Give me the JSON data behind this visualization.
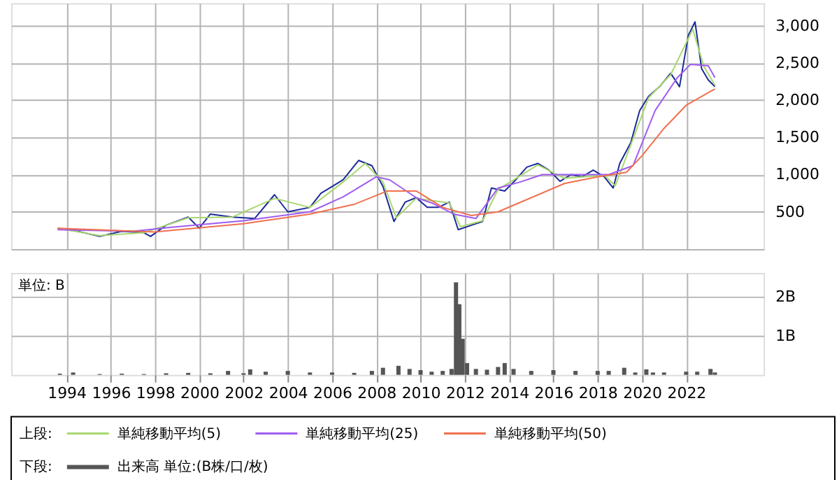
{
  "chart_data": [
    {
      "type": "line",
      "xlim": [
        1991.5,
        2025.5
      ],
      "xticks": [
        1994,
        1996,
        1998,
        2000,
        2002,
        2004,
        2006,
        2008,
        2010,
        2012,
        2014,
        2016,
        2018,
        2020,
        2022
      ],
      "ylim": [
        0,
        3300
      ],
      "yticks": [
        {
          "value": 0,
          "label": null
        },
        {
          "value": 500,
          "label": "500"
        },
        {
          "value": 1000,
          "label": "1,000"
        },
        {
          "value": 1500,
          "label": "1,500"
        },
        {
          "value": 2000,
          "label": "2,000"
        },
        {
          "value": 2500,
          "label": "2,500"
        },
        {
          "value": 3000,
          "label": "3,000"
        }
      ],
      "tick_labels": "y",
      "grid": true,
      "legend": "bottom",
      "annotations": [
        "上段:"
      ],
      "series": [
        {
          "color": "#1c2a9a",
          "x": [
            1993.6,
            1994.5,
            1995.5,
            1996.5,
            1997.5,
            1997.8,
            1998.5,
            1999.5,
            2000.0,
            2000.5,
            2001.5,
            2002.5,
            2003.4,
            2004.0,
            2005.0,
            2005.5,
            2006.0,
            2006.5,
            2007.2,
            2007.8,
            2008.3,
            2008.8,
            2009.3,
            2009.8,
            2010.3,
            2010.8,
            2011.3,
            2011.7,
            2012.3,
            2012.8,
            2013.2,
            2013.8,
            2014.3,
            2014.8,
            2015.3,
            2015.8,
            2016.3,
            2016.8,
            2017.3,
            2017.8,
            2018.3,
            2018.7,
            2019.0,
            2019.5,
            2019.9,
            2020.3,
            2020.8,
            2021.3,
            2021.7,
            2022.1,
            2022.4,
            2022.7,
            2023.0,
            2023.3
          ],
          "values": [
            280,
            240,
            170,
            240,
            220,
            170,
            320,
            430,
            280,
            470,
            430,
            410,
            730,
            500,
            560,
            750,
            840,
            930,
            1190,
            1120,
            840,
            370,
            630,
            690,
            560,
            560,
            630,
            260,
            320,
            370,
            820,
            780,
            930,
            1100,
            1150,
            1060,
            910,
            1000,
            970,
            1060,
            970,
            820,
            1150,
            1430,
            1860,
            2050,
            2180,
            2360,
            2180,
            2870,
            3050,
            2420,
            2270,
            2180
          ]
        },
        {
          "name": "単純移動平均(5)",
          "color": "#a8d86e",
          "x": [
            1993.6,
            1995.5,
            1997.5,
            1999.5,
            2001.5,
            2003.4,
            2005.0,
            2006.5,
            2007.5,
            2008.3,
            2008.9,
            2009.8,
            2011.3,
            2011.8,
            2012.8,
            2013.5,
            2015.3,
            2016.5,
            2018.3,
            2018.8,
            2019.5,
            2020.3,
            2021.3,
            2022.3,
            2022.8,
            2023.3
          ],
          "values": [
            280,
            180,
            220,
            420,
            430,
            680,
            560,
            900,
            1150,
            900,
            420,
            680,
            620,
            300,
            380,
            800,
            1130,
            950,
            990,
            850,
            1400,
            2030,
            2340,
            2950,
            2450,
            2200
          ]
        },
        {
          "name": "単純移動平均(25)",
          "color": "#a05cf0",
          "x": [
            1993.6,
            1997.0,
            1999.0,
            2002.0,
            2005.0,
            2006.5,
            2008.0,
            2008.6,
            2009.8,
            2010.5,
            2011.5,
            2012.5,
            2013.5,
            2014.5,
            2015.5,
            2017.0,
            2018.5,
            2019.6,
            2020.6,
            2021.6,
            2022.2,
            2023.0,
            2023.3
          ],
          "values": [
            260,
            240,
            300,
            380,
            500,
            700,
            970,
            930,
            690,
            620,
            470,
            410,
            820,
            900,
            1000,
            1000,
            1000,
            1120,
            1860,
            2300,
            2480,
            2460,
            2300
          ]
        },
        {
          "name": "単純移動平均(50)",
          "color": "#f07050",
          "x": [
            1993.6,
            1998.0,
            2002.0,
            2005.0,
            2007.0,
            2008.5,
            2009.8,
            2011.0,
            2012.3,
            2013.5,
            2015.0,
            2016.5,
            2018.0,
            2019.3,
            2020.0,
            2021.0,
            2022.0,
            2023.3
          ],
          "values": [
            280,
            230,
            340,
            470,
            600,
            780,
            780,
            560,
            450,
            500,
            690,
            880,
            970,
            1030,
            1250,
            1620,
            1930,
            2150
          ]
        }
      ]
    },
    {
      "type": "bar",
      "xlim": [
        1991.5,
        2025.5
      ],
      "xticks": [
        1994,
        1996,
        1998,
        2000,
        2002,
        2004,
        2006,
        2008,
        2010,
        2012,
        2014,
        2016,
        2018,
        2020,
        2022
      ],
      "ylim": [
        0,
        2.6
      ],
      "yticks": [
        {
          "value": 1,
          "label": "1B"
        },
        {
          "value": 2,
          "label": "2B"
        }
      ],
      "grid": true,
      "legend": "bottom",
      "annotations": [
        "単位: B",
        "下段:"
      ],
      "series": [
        {
          "name": "出来高 単位:(B株/口/枚)",
          "color": "#555555",
          "x": [
            1993.7,
            1994.3,
            1995.5,
            1996.5,
            1997.5,
            1998.5,
            1999.5,
            2000.5,
            2001.3,
            2002.0,
            2002.3,
            2003.0,
            2004.0,
            2005.0,
            2006.0,
            2007.0,
            2007.8,
            2008.3,
            2009.0,
            2009.5,
            2010.0,
            2010.5,
            2011.0,
            2011.4,
            2011.6,
            2011.75,
            2011.9,
            2012.1,
            2012.5,
            2013.0,
            2013.5,
            2013.8,
            2014.2,
            2015.0,
            2016.0,
            2017.0,
            2018.0,
            2018.5,
            2019.2,
            2019.7,
            2020.2,
            2020.5,
            2021.0,
            2022.0,
            2022.5,
            2023.1,
            2023.3
          ],
          "values": [
            0.03,
            0.06,
            0.02,
            0.03,
            0.02,
            0.04,
            0.05,
            0.04,
            0.1,
            0.04,
            0.14,
            0.08,
            0.1,
            0.06,
            0.06,
            0.05,
            0.1,
            0.18,
            0.23,
            0.15,
            0.12,
            0.08,
            0.1,
            0.15,
            2.36,
            1.8,
            0.92,
            0.3,
            0.15,
            0.13,
            0.2,
            0.3,
            0.15,
            0.1,
            0.12,
            0.1,
            0.1,
            0.1,
            0.18,
            0.06,
            0.14,
            0.06,
            0.06,
            0.08,
            0.08,
            0.15,
            0.06
          ]
        }
      ]
    }
  ]
}
